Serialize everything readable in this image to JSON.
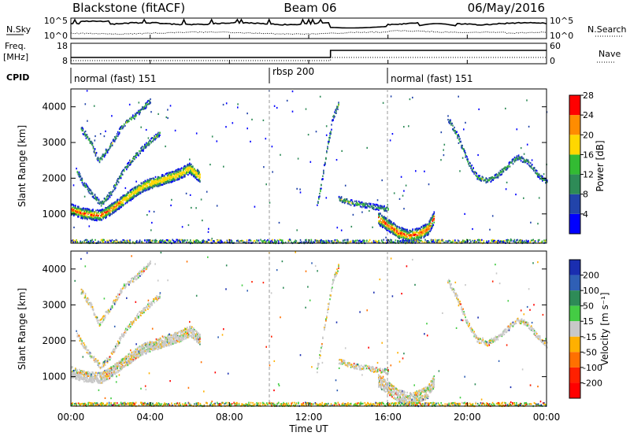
{
  "header": {
    "title_left": "Blackstone (fitACF)",
    "title_center": "Beam 06",
    "title_right": "06/May/2016"
  },
  "nsky_panel": {
    "label": "N.Sky",
    "right_label": "N.Search",
    "ticks_left": [
      "10^5",
      "10^0"
    ],
    "ticks_right": [
      "10^5",
      "10^0"
    ]
  },
  "freq_panel": {
    "label_line1": "Freq.",
    "label_line2": "[MHz]",
    "right_label": "Nave",
    "ticks_left": [
      "18",
      "8"
    ],
    "ticks_right": [
      "60",
      "0"
    ]
  },
  "cpid_panel": {
    "label": "CPID",
    "segments": [
      {
        "label": "normal (fast) 151",
        "start_hour": 0
      },
      {
        "label": "rbsp 200",
        "start_hour": 10
      },
      {
        "label": "normal (fast) 151",
        "start_hour": 16
      }
    ]
  },
  "x_axis": {
    "label": "Time UT",
    "ticks": [
      "00:00",
      "04:00",
      "08:00",
      "12:00",
      "16:00",
      "20:00",
      "00:00"
    ]
  },
  "power_panel": {
    "ylabel": "Slant Range [km]",
    "yticks": [
      "1000",
      "2000",
      "3000",
      "4000"
    ],
    "colorbar_label": "Power [dB]",
    "colorbar_ticks": [
      "4",
      "8",
      "12",
      "16",
      "20",
      "24",
      "28"
    ],
    "colors": [
      "#0000ff",
      "#2244aa",
      "#2e8b57",
      "#33bb33",
      "#ffd700",
      "#ff8c00",
      "#ff0000"
    ]
  },
  "velocity_panel": {
    "ylabel": "Slant Range [km]",
    "yticks": [
      "1000",
      "2000",
      "3000",
      "4000"
    ],
    "colorbar_label": "Velocity [m s⁻¹]",
    "colorbar_ticks": [
      "200",
      "100",
      "50",
      "15",
      "-15",
      "-50",
      "-100",
      "-200"
    ],
    "colors": [
      "#1a2eb0",
      "#2f5fb5",
      "#2e8b57",
      "#44cc44",
      "#c8c8c8",
      "#ffb000",
      "#ff7000",
      "#ff2000",
      "#ff0000"
    ]
  },
  "chart_data": {
    "type": "heatmap",
    "x_range_hours": [
      0,
      24
    ],
    "y_range_km": [
      180,
      4500
    ],
    "cpid_change_hours": [
      10,
      16
    ],
    "freq_step": {
      "before_mhz": 10,
      "after_mhz": 12,
      "change_hour": 13.1
    },
    "scatter_tracks": [
      {
        "name": "",
        "points": [
          [
            0.0,
            1150
          ],
          [
            0.5,
            1050
          ],
          [
            1.0,
            1000
          ],
          [
            1.5,
            980
          ],
          [
            2.0,
            1150
          ],
          [
            2.5,
            1350
          ],
          [
            3.0,
            1550
          ],
          [
            3.5,
            1750
          ],
          [
            4.0,
            1880
          ],
          [
            4.5,
            1950
          ],
          [
            5.0,
            2050
          ],
          [
            5.5,
            2150
          ],
          [
            6.0,
            2300
          ],
          [
            6.5,
            2050
          ]
        ]
      },
      {
        "name": "",
        "points": [
          [
            0.3,
            2200
          ],
          [
            0.6,
            1900
          ],
          [
            1.0,
            1600
          ],
          [
            1.5,
            1300
          ],
          [
            2.0,
            1600
          ],
          [
            2.5,
            2100
          ],
          [
            3.0,
            2500
          ],
          [
            3.5,
            2800
          ],
          [
            4.0,
            3050
          ],
          [
            4.5,
            3300
          ]
        ]
      },
      {
        "name": "",
        "points": [
          [
            0.5,
            3400
          ],
          [
            1.0,
            3000
          ],
          [
            1.4,
            2500
          ],
          [
            2.0,
            2950
          ],
          [
            2.6,
            3500
          ],
          [
            3.3,
            3800
          ],
          [
            4.0,
            4200
          ]
        ]
      },
      {
        "name": "",
        "points": [
          [
            13.5,
            1450
          ],
          [
            14.0,
            1350
          ],
          [
            14.5,
            1300
          ],
          [
            15.0,
            1250
          ],
          [
            15.5,
            1200
          ],
          [
            16.0,
            1150
          ]
        ]
      },
      {
        "name": "",
        "points": [
          [
            12.4,
            1200
          ],
          [
            12.6,
            1800
          ],
          [
            12.9,
            2800
          ],
          [
            13.2,
            3700
          ],
          [
            13.5,
            4100
          ]
        ]
      },
      {
        "name": "",
        "points": [
          [
            15.5,
            900
          ],
          [
            16.0,
            700
          ],
          [
            16.5,
            500
          ],
          [
            17.0,
            400
          ],
          [
            17.5,
            450
          ],
          [
            18.0,
            600
          ],
          [
            18.3,
            900
          ]
        ]
      },
      {
        "name": "",
        "points": [
          [
            19.0,
            3700
          ],
          [
            19.5,
            3200
          ],
          [
            20.0,
            2500
          ],
          [
            20.5,
            2050
          ],
          [
            21.0,
            1950
          ],
          [
            21.5,
            2100
          ],
          [
            22.0,
            2350
          ],
          [
            22.5,
            2600
          ],
          [
            23.0,
            2500
          ],
          [
            23.5,
            2150
          ],
          [
            24.0,
            1900
          ]
        ]
      }
    ]
  }
}
